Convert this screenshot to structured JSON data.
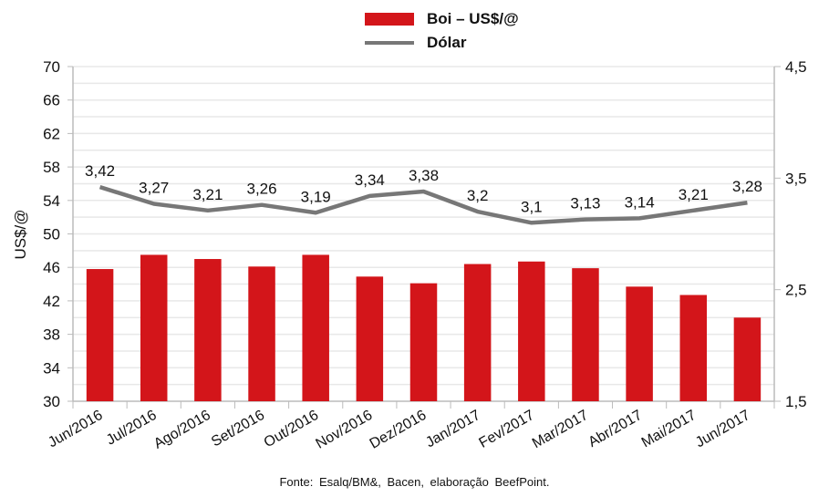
{
  "chart_data": {
    "type": "bar",
    "categories": [
      "Jun/2016",
      "Jul/2016",
      "Ago/2016",
      "Set/2016",
      "Out/2016",
      "Nov/2016",
      "Dez/2016",
      "Jan/2017",
      "Fev/2017",
      "Mar/2017",
      "Abr/2017",
      "Mai/2017",
      "Jun/2017"
    ],
    "series": [
      {
        "name": "Boi – US$/@",
        "type": "bar",
        "axis": "left",
        "color": "#d3151a",
        "values": [
          45.8,
          47.5,
          47.0,
          46.1,
          47.5,
          44.9,
          44.1,
          46.4,
          46.7,
          45.9,
          43.7,
          42.7,
          40.0
        ]
      },
      {
        "name": "Dólar",
        "type": "line",
        "axis": "right",
        "color": "#777777",
        "values": [
          3.42,
          3.27,
          3.21,
          3.26,
          3.19,
          3.34,
          3.38,
          3.2,
          3.1,
          3.13,
          3.14,
          3.21,
          3.28
        ],
        "labels": [
          "3,42",
          "3,27",
          "3,21",
          "3,26",
          "3,19",
          "3,34",
          "3,38",
          "3,2",
          "3,1",
          "3,13",
          "3,14",
          "3,21",
          "3,28"
        ]
      }
    ],
    "ylabel": "US$/@",
    "ylim": [
      30,
      70
    ],
    "yticks": [
      "30",
      "34",
      "38",
      "42",
      "46",
      "50",
      "54",
      "58",
      "62",
      "66",
      "70"
    ],
    "y2lim": [
      1.5,
      4.5
    ],
    "y2ticks": [
      "1,5",
      "2,5",
      "3,5",
      "4,5"
    ],
    "grid": true,
    "legend_placement": "top-center",
    "source": "Fonte: Esalq/BM&, Bacen, elaboração BeefPoint."
  }
}
